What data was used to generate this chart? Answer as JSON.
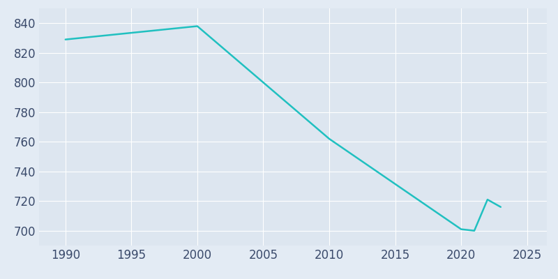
{
  "years": [
    1990,
    2000,
    2010,
    2020,
    2021,
    2022,
    2023
  ],
  "population": [
    829,
    838,
    762,
    701,
    700,
    721,
    716
  ],
  "line_color": "#20C0C0",
  "bg_color": "#E3EBF4",
  "plot_bg_color": "#DDE6F0",
  "grid_color": "#FFFFFF",
  "text_color": "#3A4A6B",
  "xlim": [
    1988,
    2026.5
  ],
  "ylim": [
    690,
    850
  ],
  "xticks": [
    1990,
    1995,
    2000,
    2005,
    2010,
    2015,
    2020,
    2025
  ],
  "yticks": [
    700,
    720,
    740,
    760,
    780,
    800,
    820,
    840
  ],
  "line_width": 1.8,
  "tick_fontsize": 12
}
